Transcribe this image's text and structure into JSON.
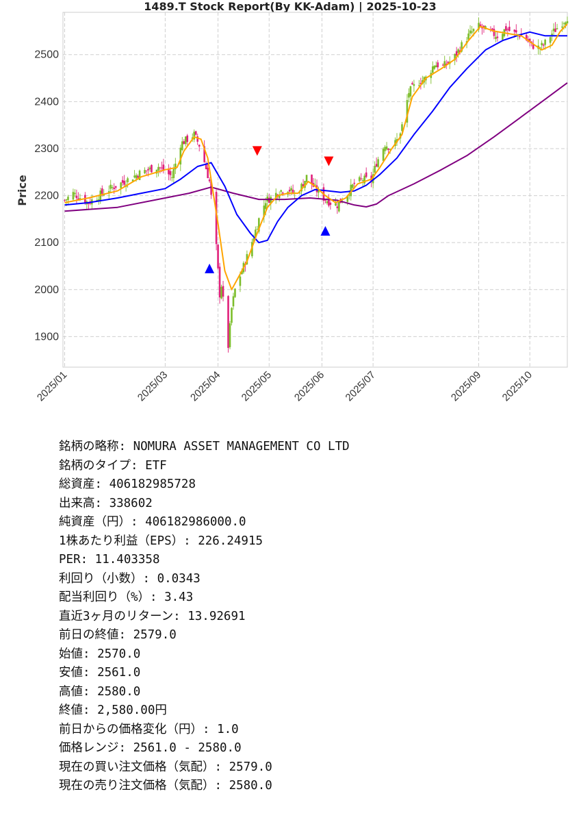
{
  "chart_data": {
    "type": "candlestick",
    "title": "1489.T   Stock Report(By KK-Adam) | 2025-10-23",
    "ylabel": "Price",
    "xlabel": "",
    "ylim": [
      1835,
      2590
    ],
    "xlim": [
      "2024-12-31",
      "2025-10-23"
    ],
    "yticks": [
      1900,
      2000,
      2100,
      2200,
      2300,
      2400,
      2500
    ],
    "xticks": [
      {
        "date": "2025-01-01",
        "label": "2025/01"
      },
      {
        "date": "2025-03-01",
        "label": "2025/03"
      },
      {
        "date": "2025-04-01",
        "label": "2025/04"
      },
      {
        "date": "2025-05-01",
        "label": "2025/05"
      },
      {
        "date": "2025-06-01",
        "label": "2025/06"
      },
      {
        "date": "2025-07-01",
        "label": "2025/07"
      },
      {
        "date": "2025-09-01",
        "label": "2025/09"
      },
      {
        "date": "2025-10-01",
        "label": "2025/10"
      }
    ],
    "grid": true,
    "colors": {
      "up": "#7cbd2a",
      "down": "#e0207a",
      "short_ma": "#ffa500",
      "mid_ma": "#0000ff",
      "long_ma": "#800080",
      "buy_marker": "#0000ff",
      "sell_marker": "#ff0000"
    },
    "close_anchors": [
      [
        "2025-01-01",
        2190
      ],
      [
        "2025-01-06",
        2205
      ],
      [
        "2025-01-15",
        2185
      ],
      [
        "2025-01-25",
        2210
      ],
      [
        "2025-02-05",
        2230
      ],
      [
        "2025-02-15",
        2250
      ],
      [
        "2025-02-25",
        2262
      ],
      [
        "2025-03-05",
        2240
      ],
      [
        "2025-03-10",
        2310
      ],
      [
        "2025-03-18",
        2330
      ],
      [
        "2025-03-22",
        2300
      ],
      [
        "2025-03-27",
        2230
      ],
      [
        "2025-03-29",
        2165
      ],
      [
        "2025-03-31",
        2090
      ],
      [
        "2025-04-02",
        1990
      ],
      [
        "2025-04-03",
        2010
      ],
      [
        "2025-04-07",
        1880
      ],
      [
        "2025-04-09",
        1960
      ],
      [
        "2025-04-11",
        2000
      ],
      [
        "2025-04-15",
        2040
      ],
      [
        "2025-04-20",
        2090
      ],
      [
        "2025-04-25",
        2150
      ],
      [
        "2025-04-29",
        2190
      ],
      [
        "2025-05-02",
        2195
      ],
      [
        "2025-05-07",
        2210
      ],
      [
        "2025-05-12",
        2215
      ],
      [
        "2025-05-17",
        2200
      ],
      [
        "2025-05-23",
        2240
      ],
      [
        "2025-05-28",
        2215
      ],
      [
        "2025-06-02",
        2195
      ],
      [
        "2025-06-06",
        2185
      ],
      [
        "2025-06-10",
        2180
      ],
      [
        "2025-06-15",
        2200
      ],
      [
        "2025-06-20",
        2225
      ],
      [
        "2025-06-25",
        2235
      ],
      [
        "2025-06-30",
        2232
      ],
      [
        "2025-07-03",
        2270
      ],
      [
        "2025-07-08",
        2310
      ],
      [
        "2025-07-12",
        2300
      ],
      [
        "2025-07-17",
        2330
      ],
      [
        "2025-07-22",
        2420
      ],
      [
        "2025-07-27",
        2440
      ],
      [
        "2025-08-01",
        2450
      ],
      [
        "2025-08-06",
        2480
      ],
      [
        "2025-08-11",
        2475
      ],
      [
        "2025-08-17",
        2490
      ],
      [
        "2025-08-22",
        2520
      ],
      [
        "2025-08-27",
        2545
      ],
      [
        "2025-09-01",
        2560
      ],
      [
        "2025-09-06",
        2550
      ],
      [
        "2025-09-12",
        2540
      ],
      [
        "2025-09-17",
        2555
      ],
      [
        "2025-09-22",
        2545
      ],
      [
        "2025-09-27",
        2540
      ],
      [
        "2025-10-02",
        2520
      ],
      [
        "2025-10-06",
        2515
      ],
      [
        "2025-10-09",
        2520
      ],
      [
        "2025-10-14",
        2545
      ],
      [
        "2025-10-19",
        2565
      ],
      [
        "2025-10-23",
        2580
      ]
    ],
    "ma_short": [
      [
        "2025-01-01",
        2185
      ],
      [
        "2025-01-15",
        2195
      ],
      [
        "2025-02-01",
        2210
      ],
      [
        "2025-02-15",
        2240
      ],
      [
        "2025-03-01",
        2255
      ],
      [
        "2025-03-08",
        2260
      ],
      [
        "2025-03-12",
        2295
      ],
      [
        "2025-03-18",
        2325
      ],
      [
        "2025-03-22",
        2320
      ],
      [
        "2025-03-26",
        2280
      ],
      [
        "2025-03-29",
        2210
      ],
      [
        "2025-04-01",
        2140
      ],
      [
        "2025-04-05",
        2040
      ],
      [
        "2025-04-09",
        2000
      ],
      [
        "2025-04-12",
        2020
      ],
      [
        "2025-04-18",
        2060
      ],
      [
        "2025-04-24",
        2120
      ],
      [
        "2025-04-30",
        2175
      ],
      [
        "2025-05-06",
        2200
      ],
      [
        "2025-05-12",
        2205
      ],
      [
        "2025-05-18",
        2205
      ],
      [
        "2025-05-24",
        2230
      ],
      [
        "2025-05-28",
        2220
      ],
      [
        "2025-06-03",
        2200
      ],
      [
        "2025-06-09",
        2185
      ],
      [
        "2025-06-15",
        2195
      ],
      [
        "2025-06-22",
        2225
      ],
      [
        "2025-06-30",
        2235
      ],
      [
        "2025-07-05",
        2260
      ],
      [
        "2025-07-12",
        2300
      ],
      [
        "2025-07-18",
        2330
      ],
      [
        "2025-07-24",
        2410
      ],
      [
        "2025-08-01",
        2450
      ],
      [
        "2025-08-10",
        2470
      ],
      [
        "2025-08-18",
        2490
      ],
      [
        "2025-08-26",
        2530
      ],
      [
        "2025-09-02",
        2560
      ],
      [
        "2025-09-10",
        2550
      ],
      [
        "2025-09-18",
        2545
      ],
      [
        "2025-09-26",
        2540
      ],
      [
        "2025-10-02",
        2525
      ],
      [
        "2025-10-08",
        2510
      ],
      [
        "2025-10-14",
        2520
      ],
      [
        "2025-10-19",
        2550
      ],
      [
        "2025-10-23",
        2565
      ]
    ],
    "ma_mid": [
      [
        "2025-01-01",
        2180
      ],
      [
        "2025-01-15",
        2185
      ],
      [
        "2025-02-01",
        2195
      ],
      [
        "2025-02-15",
        2205
      ],
      [
        "2025-03-01",
        2215
      ],
      [
        "2025-03-10",
        2235
      ],
      [
        "2025-03-20",
        2262
      ],
      [
        "2025-03-28",
        2270
      ],
      [
        "2025-04-05",
        2220
      ],
      [
        "2025-04-12",
        2160
      ],
      [
        "2025-04-20",
        2120
      ],
      [
        "2025-04-25",
        2100
      ],
      [
        "2025-04-30",
        2105
      ],
      [
        "2025-05-06",
        2145
      ],
      [
        "2025-05-12",
        2175
      ],
      [
        "2025-05-20",
        2200
      ],
      [
        "2025-05-28",
        2213
      ],
      [
        "2025-06-05",
        2210
      ],
      [
        "2025-06-12",
        2207
      ],
      [
        "2025-06-20",
        2210
      ],
      [
        "2025-06-27",
        2222
      ],
      [
        "2025-07-05",
        2245
      ],
      [
        "2025-07-15",
        2280
      ],
      [
        "2025-07-25",
        2330
      ],
      [
        "2025-08-05",
        2380
      ],
      [
        "2025-08-15",
        2430
      ],
      [
        "2025-08-25",
        2470
      ],
      [
        "2025-09-05",
        2510
      ],
      [
        "2025-09-15",
        2530
      ],
      [
        "2025-09-25",
        2542
      ],
      [
        "2025-10-01",
        2548
      ],
      [
        "2025-10-10",
        2540
      ],
      [
        "2025-10-23",
        2540
      ]
    ],
    "ma_long": [
      [
        "2025-01-01",
        2167
      ],
      [
        "2025-02-01",
        2175
      ],
      [
        "2025-03-01",
        2195
      ],
      [
        "2025-03-15",
        2205
      ],
      [
        "2025-03-28",
        2218
      ],
      [
        "2025-04-10",
        2205
      ],
      [
        "2025-04-25",
        2192
      ],
      [
        "2025-05-10",
        2192
      ],
      [
        "2025-05-25",
        2195
      ],
      [
        "2025-06-10",
        2190
      ],
      [
        "2025-06-20",
        2180
      ],
      [
        "2025-06-27",
        2176
      ],
      [
        "2025-07-03",
        2182
      ],
      [
        "2025-07-10",
        2200
      ],
      [
        "2025-07-25",
        2225
      ],
      [
        "2025-08-10",
        2255
      ],
      [
        "2025-08-25",
        2285
      ],
      [
        "2025-09-10",
        2325
      ],
      [
        "2025-09-25",
        2365
      ],
      [
        "2025-10-10",
        2405
      ],
      [
        "2025-10-23",
        2440
      ]
    ],
    "buy_signals": [
      [
        "2025-03-27",
        2045
      ],
      [
        "2025-06-03",
        2125
      ]
    ],
    "sell_signals": [
      [
        "2025-04-24",
        2295
      ],
      [
        "2025-06-05",
        2273
      ]
    ]
  },
  "info_lines": [
    "銘柄の略称: NOMURA ASSET MANAGEMENT CO LTD",
    "銘柄のタイプ: ETF",
    "総資産: 406182985728",
    "出来高: 338602",
    "純資産（円）: 406182986000.0",
    "1株あたり利益（EPS）: 226.24915",
    "PER: 11.403358",
    "利回り（小数）: 0.0343",
    "配当利回り（%）: 3.43",
    "直近3ヶ月のリターン: 13.92691",
    "前日の終値: 2579.0",
    "始値: 2570.0",
    "安値: 2561.0",
    "高値: 2580.0",
    "終値: 2,580.00円",
    "前日からの価格変化（円）: 1.0",
    "価格レンジ: 2561.0 - 2580.0",
    "現在の買い注文価格（気配）: 2579.0",
    "現在の売り注文価格（気配）: 2580.0"
  ]
}
